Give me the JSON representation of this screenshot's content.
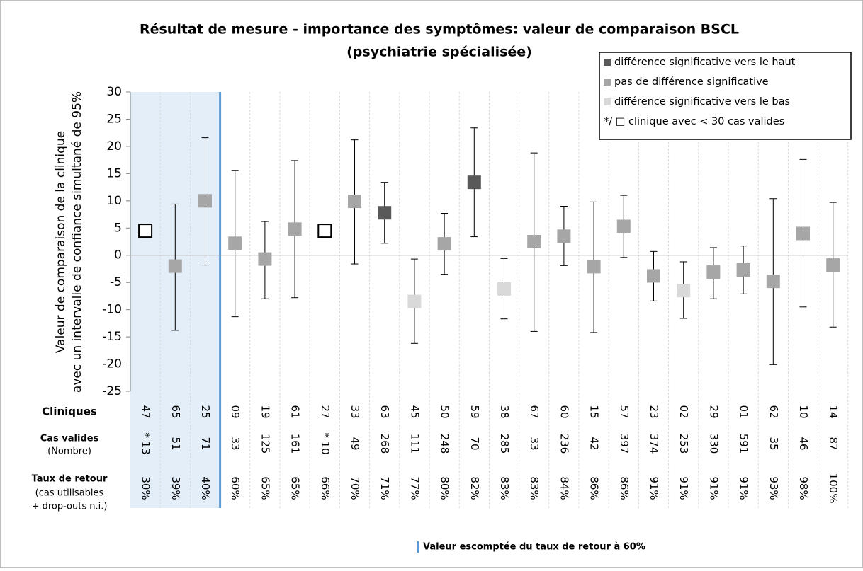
{
  "chart_data": {
    "type": "errorbar",
    "title": "Résultat de mesure - importance des symptômes: valeur de comparaison  BSCL",
    "subtitle": "(psychiatrie spécialisée)",
    "y_label": [
      "Valeur de comparaison de la clinique",
      "avec un intervalle de confiance simultané de 95%"
    ],
    "ylim": [
      -25,
      30
    ],
    "yticks": [
      -25,
      -20,
      -15,
      -10,
      -5,
      0,
      5,
      10,
      15,
      20,
      25,
      30
    ],
    "categories": [
      "47",
      "65",
      "25",
      "09",
      "19",
      "61",
      "27",
      "33",
      "63",
      "45",
      "50",
      "59",
      "38",
      "67",
      "60",
      "15",
      "57",
      "23",
      "02",
      "29",
      "01",
      "62",
      "10",
      "14"
    ],
    "series": [
      {
        "name": "différence significative vers le haut",
        "color": "#595959",
        "values": [
          null,
          null,
          null,
          null,
          null,
          null,
          null,
          null,
          7.8,
          null,
          null,
          13.4,
          null,
          null,
          null,
          null,
          null,
          null,
          null,
          null,
          null,
          null,
          null,
          null
        ],
        "lower": [
          null,
          null,
          null,
          null,
          null,
          null,
          null,
          null,
          2.2,
          null,
          null,
          3.4,
          null,
          null,
          null,
          null,
          null,
          null,
          null,
          null,
          null,
          null,
          null,
          null
        ],
        "upper": [
          null,
          null,
          null,
          null,
          null,
          null,
          null,
          null,
          13.4,
          null,
          null,
          23.4,
          null,
          null,
          null,
          null,
          null,
          null,
          null,
          null,
          null,
          null,
          null,
          null
        ]
      },
      {
        "name": "pas de différence significative",
        "color": "#a6a6a6",
        "values": [
          null,
          -2,
          10,
          2.2,
          -0.7,
          4.8,
          null,
          9.9,
          null,
          null,
          2.1,
          null,
          null,
          2.5,
          3.5,
          -2.1,
          5.3,
          -3.8,
          null,
          -3.1,
          -2.7,
          -4.8,
          4,
          -1.8
        ],
        "lower": [
          null,
          -13.8,
          -1.8,
          -11.3,
          -8,
          -7.8,
          null,
          -1.6,
          null,
          null,
          -3.5,
          null,
          null,
          -14,
          -1.9,
          -14.2,
          -0.4,
          -8.4,
          null,
          -8,
          -7.1,
          -20.1,
          -9.5,
          -13.2
        ],
        "upper": [
          null,
          9.4,
          21.6,
          15.6,
          6.2,
          17.4,
          null,
          21.2,
          null,
          null,
          7.7,
          null,
          null,
          18.8,
          9,
          9.8,
          11,
          0.7,
          null,
          1.4,
          1.7,
          10.4,
          17.6,
          9.7
        ]
      },
      {
        "name": "différence significative vers le bas",
        "color": "#d9d9d9",
        "values": [
          null,
          null,
          null,
          null,
          null,
          null,
          null,
          null,
          null,
          -8.5,
          null,
          null,
          -6.2,
          null,
          null,
          null,
          null,
          null,
          -6.5,
          null,
          null,
          null,
          null,
          null
        ],
        "lower": [
          null,
          null,
          null,
          null,
          null,
          null,
          null,
          null,
          null,
          -16.2,
          null,
          null,
          -11.7,
          null,
          null,
          null,
          null,
          null,
          -11.6,
          null,
          null,
          null,
          null,
          null
        ],
        "upper": [
          null,
          null,
          null,
          null,
          null,
          null,
          null,
          null,
          null,
          -0.7,
          null,
          null,
          -0.6,
          null,
          null,
          null,
          null,
          null,
          -1.2,
          null,
          null,
          null,
          null,
          null
        ]
      },
      {
        "name": "*/ □ clinique avec < 30 cas valides",
        "color": "#ffffff",
        "values": [
          4.5,
          null,
          null,
          null,
          null,
          null,
          4.5,
          null,
          null,
          null,
          null,
          null,
          null,
          null,
          null,
          null,
          null,
          null,
          null,
          null,
          null,
          null,
          null,
          null
        ]
      }
    ],
    "rows": [
      {
        "label": [
          "Cliniques"
        ]
      },
      {
        "label": [
          "Cas valides",
          "(Nombre)"
        ],
        "values": [
          "* 13",
          "51",
          "71",
          "33",
          "125",
          "161",
          "* 10",
          "49",
          "268",
          "111",
          "248",
          "70",
          "285",
          "33",
          "236",
          "42",
          "397",
          "374",
          "253",
          "330",
          "591",
          "35",
          "46",
          "87"
        ]
      },
      {
        "label": [
          "Taux de retour",
          "(cas utilisables",
          "+ drop-outs n.i.)"
        ],
        "values": [
          "30%",
          "39%",
          "40%",
          "60%",
          "65%",
          "65%",
          "66%",
          "70%",
          "71%",
          "77%",
          "80%",
          "82%",
          "83%",
          "83%",
          "84%",
          "86%",
          "86%",
          "91%",
          "91%",
          "91%",
          "91%",
          "93%",
          "98%",
          "100%"
        ]
      }
    ],
    "note": "Valeur escomptée du taux de retour à 60%"
  }
}
